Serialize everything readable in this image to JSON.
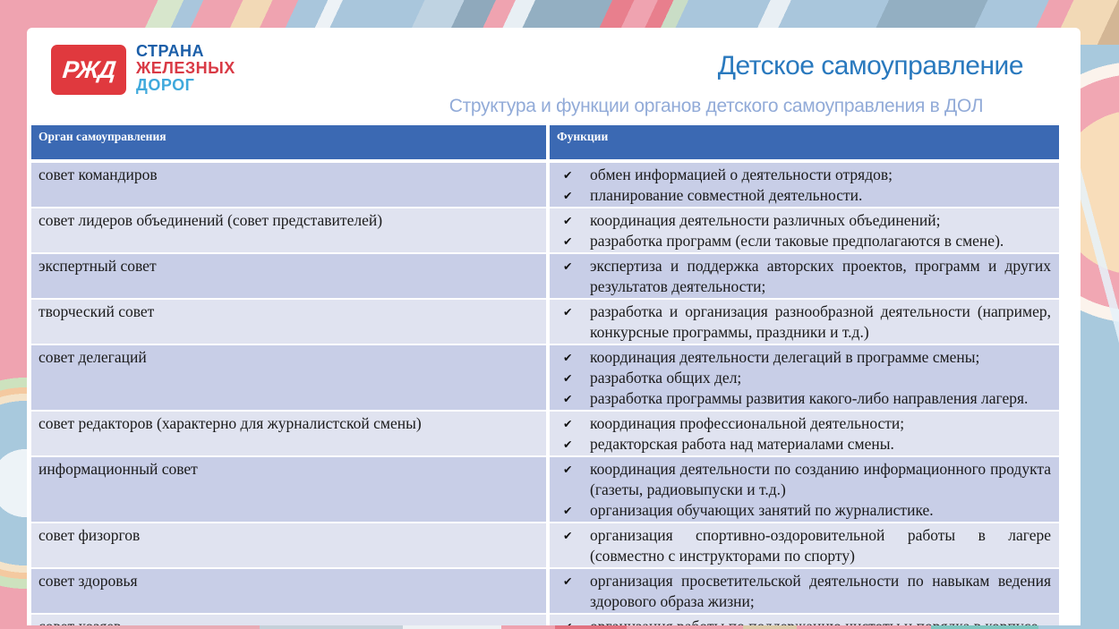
{
  "logo": {
    "glyph": "РЖД",
    "line1": "СТРАНА",
    "line2": "ЖЕЛЕЗНЫХ",
    "line3": "ДОРОГ"
  },
  "header": {
    "title": "Детское самоуправление",
    "subtitle": "Структура и функции органов детского самоуправления в ДОЛ"
  },
  "table": {
    "check_glyph": "✔",
    "columns": [
      "Орган самоуправления",
      "Функции"
    ],
    "rows": [
      {
        "organ": "совет командиров",
        "functions": [
          "обмен информацией о деятельности отрядов;",
          "планирование совместной деятельности."
        ]
      },
      {
        "organ": "совет лидеров объединений (совет представителей)",
        "functions": [
          "координация деятельности различных объединений;",
          "разработка программ (если таковые предполагаются в смене)."
        ]
      },
      {
        "organ": "экспертный совет",
        "functions": [
          "экспертиза и поддержка авторских проектов, программ и других результатов деятельности;"
        ]
      },
      {
        "organ": "творческий совет",
        "functions": [
          "разработка и организация  разнообразной деятельности (например, конкурсные программы, праздники и т.д.)"
        ]
      },
      {
        "organ": "совет  делегаций",
        "functions": [
          "координация деятельности делегаций в программе смены;",
          "разработка общих дел;",
          "разработка  программы развития какого-либо направления лагеря."
        ]
      },
      {
        "organ": "совет редакторов (характерно для журналистской смены)",
        "functions": [
          "координация  профессиональной деятельности;",
          "редакторская работа над материалами смены."
        ]
      },
      {
        "organ": "информационный совет",
        "functions": [
          "координация  деятельности по созданию информационного продукта (газеты, радиовыпуски и т.д.)",
          "организация обучающих занятий по журналистике."
        ]
      },
      {
        "organ": "совет физоргов",
        "functions": [
          "организация спортивно-оздоровительной работы в лагере (совместно с инструкторами по спорту)"
        ]
      },
      {
        "organ": "совет здоровья",
        "functions": [
          "организация просветительской деятельности по навыкам ведения здорового образа жизни;"
        ]
      },
      {
        "organ": "совет хозяев",
        "functions": [
          "организация работы по поддержанию чистоты и порядка в корпусе"
        ]
      }
    ]
  },
  "colors": {
    "header_blue": "#3B69B3",
    "row_dark": "#C8CEE7",
    "row_light": "#E0E3F0",
    "title_blue": "#2979BE",
    "subtitle_blue": "#92ABD8",
    "logo_red": "#E0393E"
  }
}
